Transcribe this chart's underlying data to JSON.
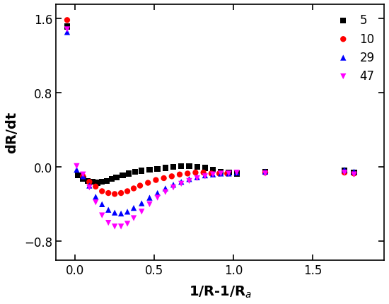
{
  "title": "",
  "xlabel": "1/R-1/R$_a$",
  "ylabel": "dR/dt",
  "xlim": [
    -0.12,
    1.95
  ],
  "ylim": [
    -1.0,
    1.75
  ],
  "yticks": [
    -0.8,
    0.0,
    0.8,
    1.6
  ],
  "xticks": [
    0.0,
    0.5,
    1.0,
    1.5
  ],
  "series": [
    {
      "label": "5",
      "color": "black",
      "marker": "s",
      "markersize": 6,
      "x": [
        -0.05,
        0.02,
        0.05,
        0.08,
        0.11,
        0.14,
        0.17,
        0.2,
        0.23,
        0.26,
        0.3,
        0.34,
        0.38,
        0.42,
        0.47,
        0.52,
        0.57,
        0.62,
        0.67,
        0.72,
        0.77,
        0.82,
        0.87,
        0.92,
        0.97,
        1.02,
        1.2,
        1.7,
        1.76
      ],
      "y": [
        1.51,
        -0.09,
        -0.13,
        -0.15,
        -0.16,
        -0.17,
        -0.16,
        -0.15,
        -0.13,
        -0.11,
        -0.09,
        -0.07,
        -0.05,
        -0.04,
        -0.03,
        -0.02,
        -0.01,
        0.0,
        0.01,
        0.01,
        0.0,
        -0.01,
        -0.03,
        -0.05,
        -0.06,
        -0.07,
        -0.05,
        -0.04,
        -0.06
      ]
    },
    {
      "label": "10",
      "color": "red",
      "marker": "o",
      "markersize": 6,
      "x": [
        -0.05,
        0.05,
        0.09,
        0.13,
        0.17,
        0.21,
        0.25,
        0.29,
        0.33,
        0.37,
        0.41,
        0.46,
        0.51,
        0.56,
        0.61,
        0.66,
        0.71,
        0.76,
        0.81,
        0.86,
        0.91,
        0.96,
        1.2,
        1.7,
        1.76
      ],
      "y": [
        1.58,
        -0.1,
        -0.16,
        -0.21,
        -0.26,
        -0.28,
        -0.29,
        -0.28,
        -0.26,
        -0.23,
        -0.2,
        -0.17,
        -0.14,
        -0.12,
        -0.1,
        -0.08,
        -0.07,
        -0.06,
        -0.06,
        -0.07,
        -0.07,
        -0.07,
        -0.06,
        -0.06,
        -0.07
      ]
    },
    {
      "label": "29",
      "color": "blue",
      "marker": "^",
      "markersize": 6,
      "x": [
        -0.05,
        0.01,
        0.05,
        0.09,
        0.13,
        0.17,
        0.21,
        0.25,
        0.29,
        0.33,
        0.37,
        0.42,
        0.47,
        0.52,
        0.57,
        0.62,
        0.67,
        0.72,
        0.77,
        0.82,
        0.87,
        0.92,
        0.97,
        1.02,
        1.2,
        1.7,
        1.76
      ],
      "y": [
        1.45,
        -0.03,
        -0.1,
        -0.2,
        -0.32,
        -0.4,
        -0.46,
        -0.49,
        -0.5,
        -0.48,
        -0.44,
        -0.39,
        -0.33,
        -0.28,
        -0.23,
        -0.19,
        -0.16,
        -0.13,
        -0.11,
        -0.09,
        -0.08,
        -0.07,
        -0.07,
        -0.06,
        -0.05,
        -0.03,
        -0.05
      ]
    },
    {
      "label": "47",
      "color": "magenta",
      "marker": "v",
      "markersize": 6,
      "x": [
        -0.05,
        0.01,
        0.05,
        0.09,
        0.13,
        0.17,
        0.21,
        0.25,
        0.29,
        0.33,
        0.37,
        0.42,
        0.47,
        0.52,
        0.57,
        0.62,
        0.67,
        0.72,
        0.77,
        0.82,
        0.87,
        0.92,
        0.97,
        1.02,
        1.2,
        1.7,
        1.76
      ],
      "y": [
        1.48,
        0.01,
        -0.08,
        -0.22,
        -0.38,
        -0.52,
        -0.6,
        -0.64,
        -0.64,
        -0.61,
        -0.55,
        -0.48,
        -0.4,
        -0.33,
        -0.27,
        -0.22,
        -0.18,
        -0.15,
        -0.12,
        -0.1,
        -0.08,
        -0.07,
        -0.07,
        -0.06,
        -0.07,
        -0.06,
        -0.08
      ]
    }
  ],
  "legend_loc": "upper right",
  "background_color": "#ffffff",
  "spine_color": "#000000"
}
